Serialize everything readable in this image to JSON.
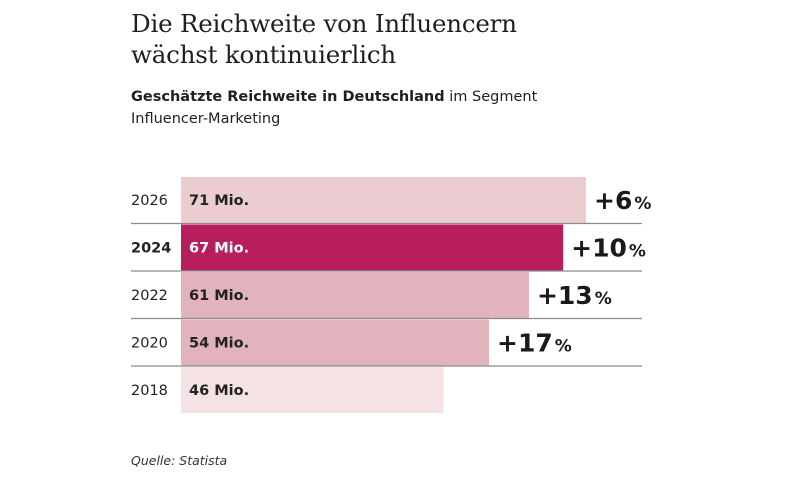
{
  "header": {
    "title_line1": "Die Reichweite von Influencern",
    "title_line2": "wächst kontinuierlich",
    "subtitle_bold": "Geschätzte Reichweite in Deutschland",
    "subtitle_rest_line1": " im Segment",
    "subtitle_line2": "Influencer-Marketing"
  },
  "footer": {
    "source": "Quelle: Statista"
  },
  "colors": {
    "highlight": "#b81e5e",
    "bar_2026": "#ebcdd1",
    "bar_2022": "#e2b3bc",
    "bar_2020": "#e2b3bc",
    "bar_2018": "#f5e2e4",
    "divider": "#8a8a8a"
  },
  "chart_data": {
    "type": "bar",
    "orientation": "horizontal",
    "title": "Die Reichweite von Influencern wächst kontinuierlich",
    "subtitle": "Geschätzte Reichweite in Deutschland im Segment Influencer-Marketing",
    "unit": "Mio.",
    "categories": [
      "2026",
      "2024",
      "2022",
      "2020",
      "2018"
    ],
    "values": [
      71,
      67,
      61,
      54,
      46
    ],
    "value_labels": [
      "71 Mio.",
      "67 Mio.",
      "61 Mio.",
      "54 Mio.",
      "46 Mio."
    ],
    "growth_labels": [
      "+6",
      "+10",
      "+13",
      "+17",
      null
    ],
    "growth_suffix": "%",
    "highlighted_category": "2024",
    "xlim": [
      0,
      71
    ],
    "grid": false,
    "legend": "none",
    "source": "Quelle: Statista"
  }
}
